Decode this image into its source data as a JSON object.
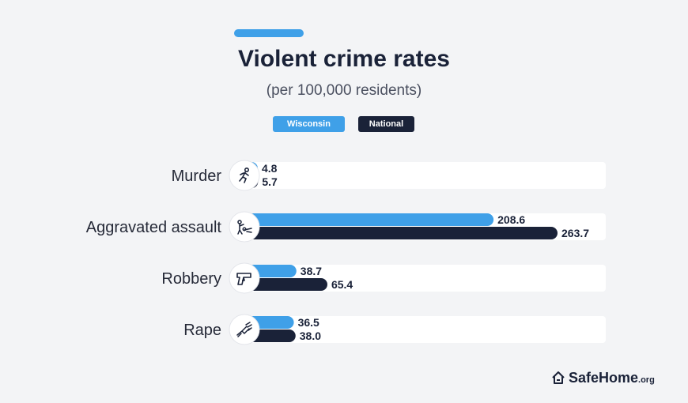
{
  "title": "Violent crime rates",
  "subtitle": "(per 100,000 residents)",
  "legend": [
    "Wisconsin",
    "National"
  ],
  "brand": {
    "name": "SafeHome",
    "suffix": ".org"
  },
  "colors": {
    "wisconsin": "#3fa0e8",
    "national": "#1a2238",
    "track": "#ffffff",
    "text": "#1a2238"
  },
  "chart_data": {
    "type": "bar",
    "orientation": "horizontal",
    "title": "Violent crime rates",
    "subtitle": "(per 100,000 residents)",
    "categories": [
      "Murder",
      "Aggravated assault",
      "Robbery",
      "Rape"
    ],
    "icons": [
      "running-person-icon",
      "assault-icon",
      "handgun-icon",
      "grabbing-hand-icon"
    ],
    "series": [
      {
        "name": "Wisconsin",
        "values": [
          4.8,
          208.6,
          38.7,
          36.5
        ]
      },
      {
        "name": "National",
        "values": [
          5.7,
          263.7,
          65.4,
          38.0
        ]
      }
    ],
    "value_labels": [
      [
        "4.8",
        "208.6",
        "38.7",
        "36.5"
      ],
      [
        "5.7",
        "263.7",
        "65.4",
        "38.0"
      ]
    ],
    "xlim": [
      0,
      300
    ],
    "grid": false,
    "legend_position": "top-center"
  }
}
